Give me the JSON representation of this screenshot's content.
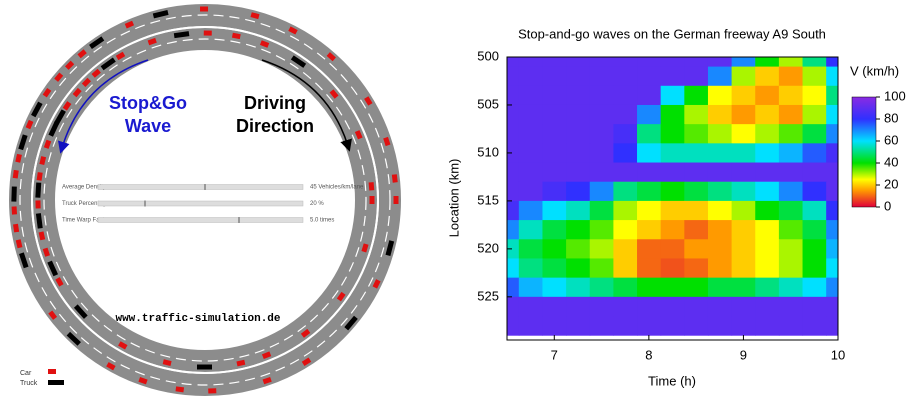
{
  "simulation": {
    "wave_label": [
      "Stop&Go",
      "Wave"
    ],
    "direction_label": [
      "Driving",
      "Direction"
    ],
    "controls": [
      {
        "label": "Average Density",
        "value": "45 Vehicles/km/lane"
      },
      {
        "label": "Truck Percentage",
        "value": "20 %"
      },
      {
        "label": "Time Warp Factor",
        "value": "5.0 times"
      }
    ],
    "url": "www.traffic-simulation.de",
    "legend": [
      "Car",
      "Truck"
    ]
  },
  "chart_data": {
    "type": "heatmap",
    "title": "Stop-and-go waves on the German freeway A9 South",
    "x_label": "Time (h)",
    "y_label": "Location (km)",
    "x": [
      6.5,
      6.75,
      7,
      7.25,
      7.5,
      7.75,
      8,
      8.25,
      8.5,
      8.75,
      9,
      9.25,
      9.5,
      9.75,
      10
    ],
    "y": [
      500,
      502,
      504,
      506,
      508,
      510,
      512,
      514,
      516,
      518,
      520,
      522,
      524,
      526,
      528
    ],
    "values": [
      [
        90,
        90,
        90,
        90,
        90,
        90,
        90,
        90,
        90,
        90,
        70,
        40,
        30,
        50,
        80
      ],
      [
        90,
        90,
        90,
        90,
        90,
        90,
        90,
        90,
        90,
        70,
        30,
        20,
        15,
        30,
        60
      ],
      [
        90,
        90,
        90,
        90,
        90,
        90,
        90,
        60,
        40,
        25,
        20,
        15,
        20,
        25,
        50
      ],
      [
        90,
        90,
        90,
        90,
        90,
        90,
        70,
        40,
        30,
        20,
        15,
        20,
        15,
        30,
        60
      ],
      [
        90,
        90,
        90,
        90,
        90,
        85,
        50,
        40,
        35,
        30,
        25,
        30,
        35,
        45,
        70
      ],
      [
        90,
        90,
        90,
        90,
        90,
        80,
        60,
        55,
        55,
        55,
        55,
        60,
        65,
        75,
        85
      ],
      [
        90,
        90,
        90,
        90,
        90,
        90,
        90,
        90,
        90,
        90,
        90,
        90,
        90,
        90,
        90
      ],
      [
        90,
        90,
        85,
        80,
        70,
        50,
        45,
        40,
        45,
        50,
        55,
        60,
        70,
        80,
        90
      ],
      [
        85,
        70,
        60,
        55,
        45,
        30,
        25,
        20,
        20,
        25,
        30,
        40,
        45,
        55,
        80
      ],
      [
        70,
        55,
        45,
        40,
        35,
        25,
        20,
        15,
        10,
        15,
        20,
        25,
        35,
        45,
        70
      ],
      [
        55,
        45,
        40,
        35,
        30,
        20,
        10,
        10,
        15,
        15,
        20,
        25,
        30,
        40,
        65
      ],
      [
        60,
        50,
        45,
        40,
        35,
        20,
        10,
        8,
        10,
        15,
        20,
        25,
        30,
        40,
        60
      ],
      [
        75,
        65,
        60,
        55,
        50,
        45,
        40,
        40,
        40,
        45,
        45,
        50,
        55,
        60,
        70
      ],
      [
        90,
        90,
        90,
        90,
        90,
        90,
        90,
        90,
        90,
        90,
        90,
        90,
        90,
        90,
        90
      ],
      [
        90,
        90,
        90,
        90,
        90,
        90,
        90,
        90,
        90,
        90,
        90,
        90,
        90,
        90,
        90
      ]
    ],
    "xlim": [
      6.5,
      10
    ],
    "ylim": [
      500,
      529.5
    ],
    "y_inverted": true,
    "xticks": [
      7,
      8,
      9,
      10
    ],
    "yticks": [
      500,
      505,
      510,
      515,
      520,
      525
    ],
    "colorbar": {
      "label": "V (km/h)",
      "lim": [
        0,
        100
      ],
      "ticks": [
        0,
        20,
        40,
        60,
        80,
        100
      ],
      "colorscale": [
        [
          0,
          "#e0003a"
        ],
        [
          15,
          "#ff9a00"
        ],
        [
          25,
          "#ffff00"
        ],
        [
          40,
          "#00e000"
        ],
        [
          60,
          "#00e0ff"
        ],
        [
          80,
          "#3030ff"
        ],
        [
          100,
          "#8a2be2"
        ]
      ]
    }
  }
}
